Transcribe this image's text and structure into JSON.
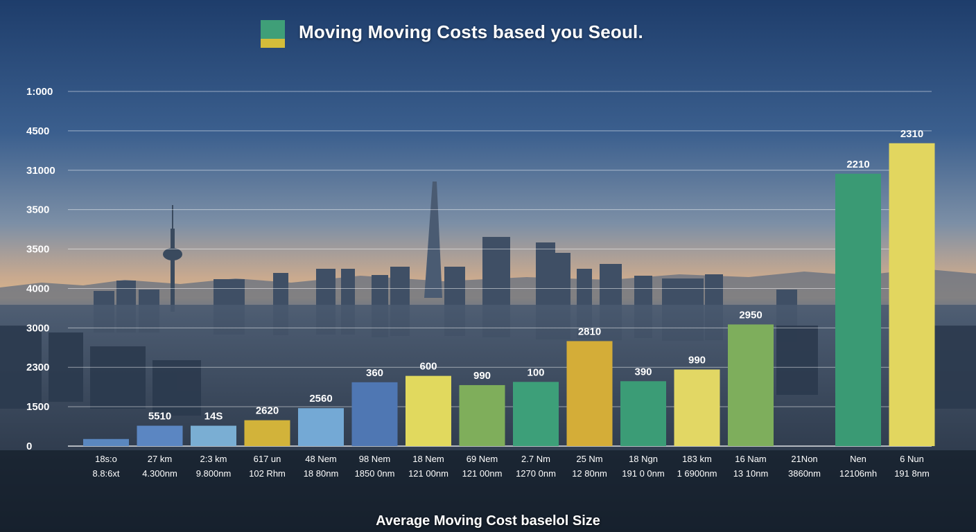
{
  "title": "Moving Moving Costs based you Seoul.",
  "legend_colors": {
    "top": "#3f9f78",
    "bottom": "#d4bd3a"
  },
  "chart_data": {
    "type": "bar",
    "title": "Moving Moving Costs based you Seoul.",
    "xlabel": "Average Moving Cost baselol Size",
    "ylabel": "",
    "y_tick_labels": [
      "0",
      "1500",
      "2300",
      "3000",
      "4000",
      "3500",
      "3500",
      "31000",
      "4500",
      "1:000"
    ],
    "grid": true,
    "categories": [
      [
        "18s:o",
        "8.8:6xt"
      ],
      [
        "27 km",
        "4.300nm"
      ],
      [
        "2:3 km",
        "9.800nm"
      ],
      [
        "617 un",
        "102 Rhm"
      ],
      [
        "48 Nem",
        "18 80nm"
      ],
      [
        "98 Nem",
        "1850 0nm"
      ],
      [
        "18 Nem",
        "121 00nm"
      ],
      [
        "69 Nem",
        "121 00nm"
      ],
      [
        "2.7 Nm",
        "1270 0nm"
      ],
      [
        "25 Nm",
        "12 80nm"
      ],
      [
        "18 Ngn",
        "191 0 0nm"
      ],
      [
        "183 km",
        "1 6900nm"
      ],
      [
        "16 Nam",
        "13 10nm"
      ],
      [
        "21Non",
        "3860nm"
      ],
      [
        "Nen",
        "12106mh"
      ],
      [
        "6 Nun",
        "191 8nm"
      ]
    ],
    "values": [
      200,
      575,
      575,
      730,
      1070,
      1800,
      1980,
      1720,
      1810,
      2960,
      1830,
      2160,
      3430,
      null,
      7680,
      8540
    ],
    "value_labels": [
      "",
      "5510",
      "14S",
      "2620",
      "2560",
      "360",
      "600",
      "990",
      "100",
      "2810",
      "390",
      "990",
      "2950",
      "",
      "2210",
      "2310"
    ],
    "bar_colors": [
      "#5a87bf",
      "#5b86c2",
      "#7aaed3",
      "#d2b33a",
      "#74a9d5",
      "#4f77b3",
      "#e1d95e",
      "#7fae5b",
      "#3d9f79",
      "#d4ad38",
      "#3b9c76",
      "#e2d764",
      "#7eae5c",
      "",
      "#3a9a74",
      "#e2d65f"
    ]
  }
}
